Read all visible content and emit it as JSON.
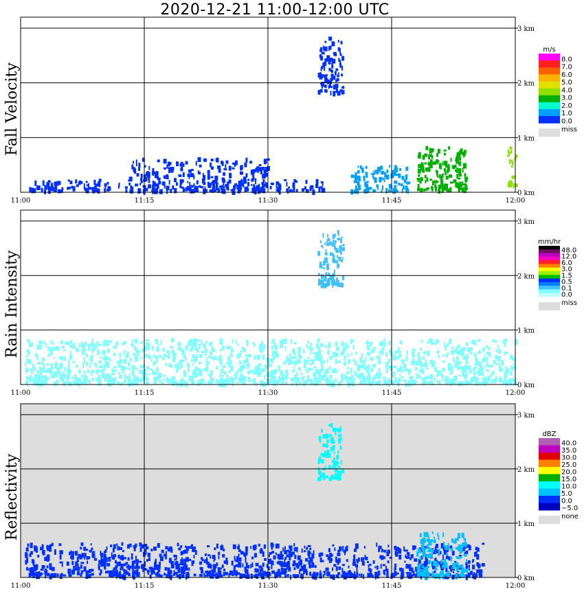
{
  "title": "2020-12-21   11:00-12:00 UTC",
  "time_labels": [
    "11:00",
    "11:15",
    "11:30",
    "11:45",
    "12:00"
  ],
  "height_labels": [
    "3 km",
    "2 km",
    "1 km",
    "0 km"
  ],
  "chart_data": [
    {
      "type": "heatmap",
      "ylabel": "Fall Velocity",
      "xlabel": "",
      "xlim": [
        0,
        60
      ],
      "ylim": [
        0,
        3.2
      ],
      "background": "#ffffff",
      "colorbar": {
        "unit": "m/s",
        "labels": [
          "8.0",
          "7.0",
          "6.0",
          "5.0",
          "4.0",
          "3.0",
          "2.0",
          "1.0",
          "0.0"
        ],
        "colors": [
          "#ff00ff",
          "#ff2020",
          "#ff6000",
          "#ffb000",
          "#e0e000",
          "#90e000",
          "#00b000",
          "#00ffcc",
          "#00a0ff",
          "#0030ff"
        ],
        "miss_label": "miss",
        "miss_color": "#dddddd"
      },
      "features": [
        {
          "name": "low-cells-1",
          "t": [
            0.5,
            13
          ],
          "h": [
            0,
            0.2
          ],
          "color": "#0030ff",
          "level": "0.0-1.0 m/s"
        },
        {
          "name": "low-cells-2",
          "t": [
            13,
            30
          ],
          "h": [
            0,
            0.6
          ],
          "color": "#0030ff",
          "level": "0.0-1.0 m/s"
        },
        {
          "name": "low-cells-3",
          "t": [
            30,
            37
          ],
          "h": [
            0,
            0.2
          ],
          "color": "#0030ff",
          "level": "0.0-1.0 m/s"
        },
        {
          "name": "elevated-cell",
          "t": [
            36,
            39
          ],
          "h": [
            1.8,
            2.8
          ],
          "color": "#0030ff",
          "level": "0.0-2.0 m/s"
        },
        {
          "name": "cell-40-47",
          "t": [
            40,
            47
          ],
          "h": [
            0,
            0.45
          ],
          "color": "#00a0ff",
          "level": "1.0-3.0 m/s"
        },
        {
          "name": "cell-48-54",
          "t": [
            48,
            54
          ],
          "h": [
            0,
            0.8
          ],
          "color": "#00b000",
          "level": "1.0-4.0 m/s"
        },
        {
          "name": "cell-59-60",
          "t": [
            59,
            60
          ],
          "h": [
            0.1,
            0.8
          ],
          "color": "#90e000",
          "level": "4.0-5.0 m/s"
        }
      ]
    },
    {
      "type": "heatmap",
      "ylabel": "Rain Intensity",
      "xlabel": "",
      "xlim": [
        0,
        60
      ],
      "ylim": [
        0,
        3.2
      ],
      "background": "#ffffff",
      "colorbar": {
        "unit": "mm/hr",
        "labels": [
          "48.0",
          "12.0",
          "6.0",
          "3.0",
          "1.5",
          "0.5",
          "0.1",
          "0.0"
        ],
        "colors": [
          "#000000",
          "#701060",
          "#c000c0",
          "#ff00c0",
          "#ff2020",
          "#ff8000",
          "#ffff00",
          "#a0f000",
          "#00c000",
          "#0030ff",
          "#0080ff",
          "#40c0ff",
          "#80ffff",
          "#c0ffff"
        ],
        "miss_label": "miss",
        "miss_color": "#dddddd"
      },
      "features": [
        {
          "name": "light-rain",
          "t": [
            0.5,
            60
          ],
          "h": [
            0,
            0.8
          ],
          "color": "#80ffff",
          "level": "0.1-0.5 mm/hr"
        },
        {
          "name": "elevated-cell",
          "t": [
            36,
            39
          ],
          "h": [
            1.8,
            2.8
          ],
          "color": "#40c0ff",
          "level": "0.5-1.5 mm/hr"
        }
      ]
    },
    {
      "type": "heatmap",
      "ylabel": "Reflectivity",
      "xlabel": "",
      "xlim": [
        0,
        60
      ],
      "ylim": [
        0,
        3.2
      ],
      "background": "#dddddd",
      "colorbar": {
        "unit": "dBZ",
        "labels": [
          "40.0",
          "35.0",
          "30.0",
          "25.0",
          "20.0",
          "15.0",
          "10.0",
          "5.0",
          "0.0",
          "−5.0"
        ],
        "colors": [
          "#b060b0",
          "#c000c0",
          "#e00000",
          "#ff8000",
          "#ffff00",
          "#00b000",
          "#00ffff",
          "#00c0ff",
          "#0030ff",
          "#0000c0"
        ],
        "miss_label": "none",
        "miss_color": "#dddddd"
      },
      "features": [
        {
          "name": "low-echo",
          "t": [
            0.5,
            56
          ],
          "h": [
            0,
            0.6
          ],
          "color": "#0030ff",
          "level": "0-10 dBZ"
        },
        {
          "name": "elevated-cell",
          "t": [
            36,
            39
          ],
          "h": [
            1.8,
            2.8
          ],
          "color": "#00ffff",
          "level": "5-15 dBZ"
        },
        {
          "name": "cell-48-54",
          "t": [
            48,
            54
          ],
          "h": [
            0,
            0.8
          ],
          "color": "#00c0ff",
          "level": "5-10 dBZ"
        }
      ]
    }
  ]
}
